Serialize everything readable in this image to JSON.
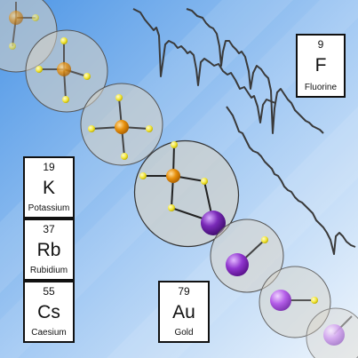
{
  "elements": [
    {
      "id": "f",
      "number": "9",
      "symbol": "F",
      "name": "Fluorine"
    },
    {
      "id": "k",
      "number": "19",
      "symbol": "K",
      "name": "Potassium"
    },
    {
      "id": "rb",
      "number": "37",
      "symbol": "Rb",
      "name": "Rubidium"
    },
    {
      "id": "cs",
      "number": "55",
      "symbol": "Cs",
      "name": "Caesium"
    },
    {
      "id": "au",
      "number": "79",
      "symbol": "Au",
      "name": "Gold"
    }
  ],
  "colors": {
    "background_light": "#eaf3fc",
    "background_dark": "#6aa8ec",
    "bubble_fill": "#d9d2c3",
    "bubble_stroke": "#555555",
    "gold_atom": "#e8900c",
    "hydrogen_atom": "#f2e635",
    "alkali_atom": "#7a2ab8",
    "spectrum_line": "#3a3a3a"
  }
}
